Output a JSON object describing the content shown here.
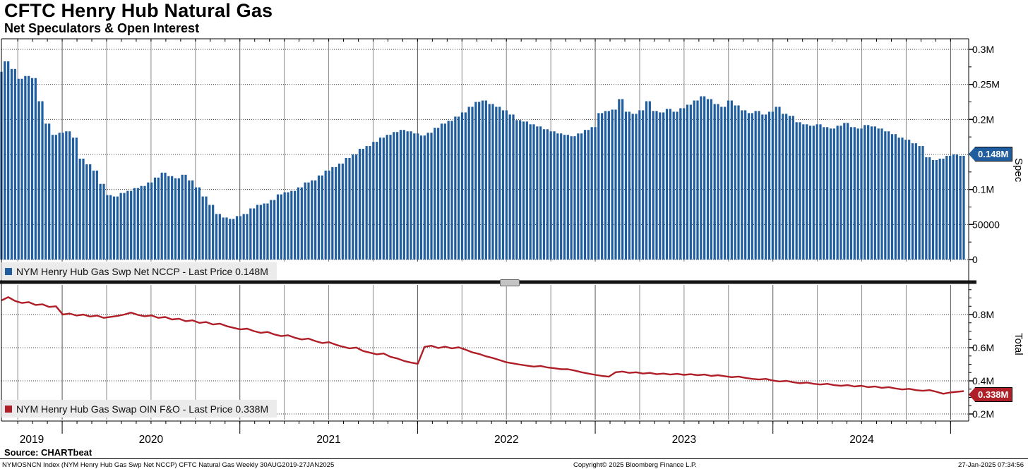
{
  "header": {
    "title": "CFTC Henry Hub Natural Gas",
    "subtitle": "Net Speculators & Open Interest"
  },
  "colors": {
    "bar_blue": "#1f5d9e",
    "line_red": "#b01e28",
    "legend_bg": "#ebebeb",
    "grid_horizontal": "#3c3c3c",
    "grid_vertical_quarter": "#8a8a8a",
    "grid_vertical_year": "#555555",
    "frame": "#000000",
    "badge_spec_bg": "#1f5d9e",
    "badge_total_bg": "#b01e28"
  },
  "x_axis": {
    "years": [
      "2019",
      "2020",
      "2021",
      "2022",
      "2023",
      "2024"
    ],
    "domain_start_year_frac": 2019.658,
    "domain_end_year_frac": 2025.074
  },
  "chart_data": [
    {
      "type": "bar",
      "panel": "spec",
      "legend": "NYM Henry Hub Gas Swp Net NCCP - Last Price 0.148M",
      "axis_label": "Spec",
      "last_price_label": "0.148M",
      "x_start": "2019-08-30",
      "x_end": "2025-01-27",
      "sampling": "bi-weekly estimates from weekly chart",
      "ylim_contracts": [
        0,
        315000
      ],
      "y_ticks": [
        {
          "v": 0,
          "label": "0"
        },
        {
          "v": 50000,
          "label": "50000"
        },
        {
          "v": 100000,
          "label": "0.1M"
        },
        {
          "v": 150000,
          "label": ""
        },
        {
          "v": 200000,
          "label": "0.2M"
        },
        {
          "v": 250000,
          "label": "0.25M"
        },
        {
          "v": 300000,
          "label": "0.3M"
        }
      ],
      "minor_tick_step": 25000,
      "values_thousands": [
        268,
        283,
        272,
        258,
        262,
        259,
        226,
        194,
        178,
        181,
        183,
        174,
        144,
        136,
        127,
        108,
        92,
        90,
        95,
        98,
        102,
        105,
        110,
        117,
        124,
        119,
        116,
        121,
        113,
        103,
        90,
        78,
        65,
        60,
        58,
        62,
        65,
        73,
        78,
        80,
        85,
        93,
        96,
        98,
        103,
        110,
        113,
        120,
        127,
        132,
        137,
        145,
        150,
        158,
        162,
        168,
        174,
        178,
        182,
        185,
        183,
        180,
        177,
        181,
        188,
        194,
        198,
        204,
        210,
        218,
        225,
        227,
        222,
        218,
        213,
        207,
        199,
        197,
        193,
        190,
        186,
        183,
        180,
        178,
        176,
        180,
        185,
        189,
        209,
        212,
        214,
        229,
        211,
        208,
        213,
        226,
        212,
        210,
        215,
        211,
        216,
        221,
        227,
        233,
        229,
        222,
        218,
        227,
        220,
        213,
        209,
        212,
        207,
        211,
        218,
        208,
        205,
        196,
        193,
        191,
        193,
        189,
        187,
        191,
        195,
        189,
        187,
        192,
        190,
        187,
        183,
        179,
        174,
        171,
        166,
        162,
        146,
        142,
        144,
        148,
        150,
        148
      ]
    },
    {
      "type": "line",
      "panel": "total",
      "legend": "NYM Henry Hub Gas Swap OIN F&O - Last Price 0.338M",
      "axis_label": "Total",
      "last_price_label": "0.338M",
      "x_start": "2019-08-30",
      "x_end": "2025-01-27",
      "sampling": "bi-weekly estimates from weekly chart",
      "ylim_millions": [
        0.2,
        0.979
      ],
      "y_ticks": [
        {
          "v": 0.2,
          "label": "0.2M"
        },
        {
          "v": 0.4,
          "label": "0.4M"
        },
        {
          "v": 0.6,
          "label": "0.6M"
        },
        {
          "v": 0.8,
          "label": "0.8M"
        }
      ],
      "minor_tick_step": 0.05,
      "values_millions": [
        0.885,
        0.905,
        0.882,
        0.87,
        0.875,
        0.858,
        0.862,
        0.846,
        0.85,
        0.8,
        0.806,
        0.794,
        0.8,
        0.788,
        0.794,
        0.78,
        0.786,
        0.792,
        0.8,
        0.812,
        0.798,
        0.79,
        0.795,
        0.78,
        0.785,
        0.77,
        0.775,
        0.76,
        0.765,
        0.75,
        0.755,
        0.74,
        0.745,
        0.73,
        0.72,
        0.71,
        0.715,
        0.7,
        0.69,
        0.695,
        0.68,
        0.67,
        0.675,
        0.66,
        0.65,
        0.655,
        0.64,
        0.628,
        0.633,
        0.618,
        0.606,
        0.596,
        0.601,
        0.58,
        0.57,
        0.56,
        0.565,
        0.545,
        0.535,
        0.52,
        0.51,
        0.503,
        0.605,
        0.612,
        0.598,
        0.606,
        0.596,
        0.602,
        0.588,
        0.572,
        0.562,
        0.548,
        0.538,
        0.525,
        0.512,
        0.505,
        0.498,
        0.492,
        0.486,
        0.49,
        0.481,
        0.476,
        0.47,
        0.47,
        0.462,
        0.452,
        0.444,
        0.436,
        0.43,
        0.425,
        0.452,
        0.456,
        0.448,
        0.452,
        0.444,
        0.448,
        0.44,
        0.444,
        0.438,
        0.442,
        0.436,
        0.44,
        0.434,
        0.438,
        0.43,
        0.434,
        0.428,
        0.422,
        0.426,
        0.418,
        0.412,
        0.408,
        0.412,
        0.402,
        0.396,
        0.4,
        0.392,
        0.386,
        0.39,
        0.382,
        0.378,
        0.382,
        0.374,
        0.37,
        0.374,
        0.366,
        0.37,
        0.362,
        0.366,
        0.358,
        0.362,
        0.354,
        0.348,
        0.352,
        0.344,
        0.34,
        0.344,
        0.334,
        0.322,
        0.33,
        0.334,
        0.338
      ]
    }
  ],
  "footer": {
    "source": "Source: CHARTbeat",
    "index_info": "NYMOSNCN Index (NYM Henry Hub Gas Swp Net NCCP) CFTC Natural Gas  Weekly 30AUG2019-27JAN2025",
    "copyright": "Copyright© 2025 Bloomberg Finance L.P.",
    "timestamp": "27-Jan-2025 07:34:56"
  }
}
